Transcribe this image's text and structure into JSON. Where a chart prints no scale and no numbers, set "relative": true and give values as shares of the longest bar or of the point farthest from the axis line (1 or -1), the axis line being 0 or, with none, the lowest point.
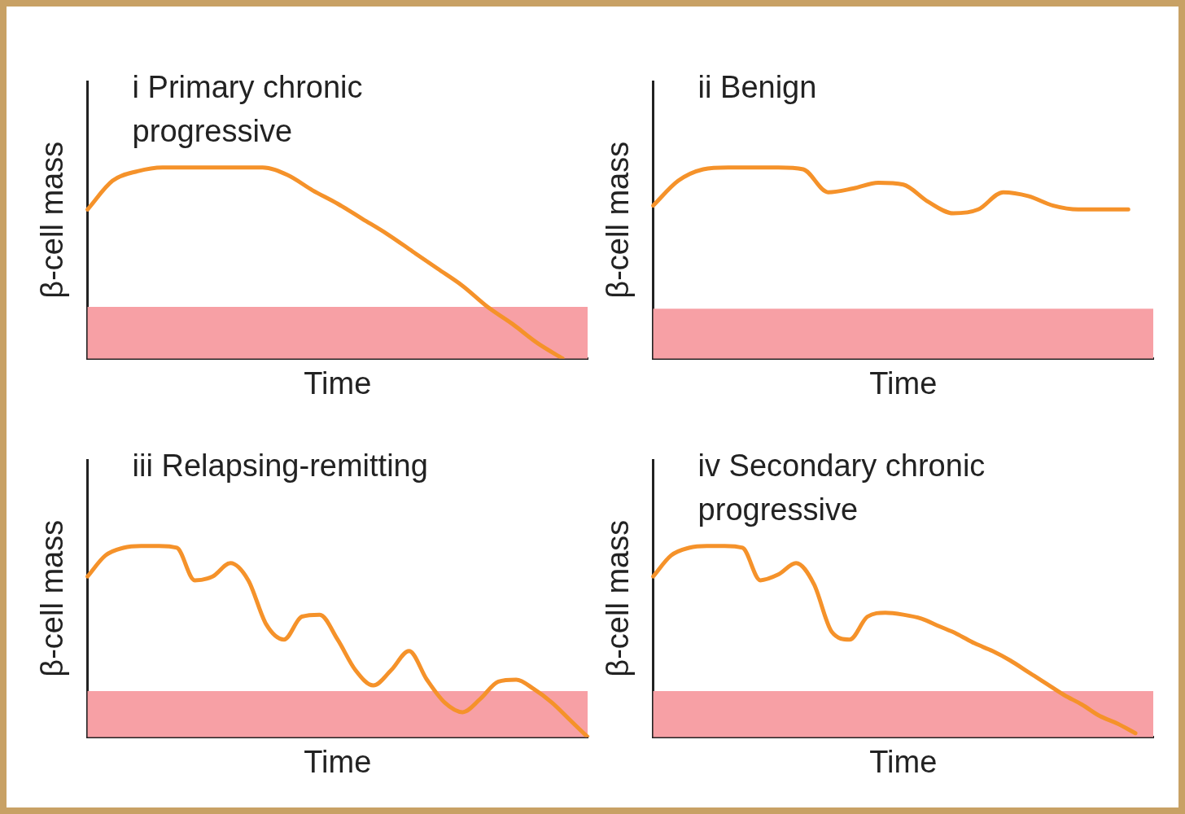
{
  "chart_data": [
    {
      "type": "line",
      "title": "i Primary chronic progressive",
      "xlabel": "Time",
      "ylabel": "β-cell mass",
      "relative": true,
      "tick_labels": false,
      "grid": false,
      "marker": "none",
      "color": "#f5922a",
      "categories": [
        null,
        null,
        null,
        null,
        null,
        null,
        null,
        null,
        null,
        null,
        null,
        null,
        null,
        null,
        null,
        null,
        null,
        null,
        null,
        null,
        null
      ],
      "values": [
        0.78,
        0.93,
        0.98,
        1,
        1,
        1,
        1,
        1,
        0.96,
        0.88,
        0.81,
        0.73,
        0.65,
        0.56,
        0.47,
        0.38,
        0.27,
        0.18,
        0.08,
        0,
        null
      ],
      "bands": [
        {
          "axis": "y",
          "from": 0,
          "to": 0.27,
          "color": "#f7a0a5"
        }
      ]
    },
    {
      "type": "line",
      "title": "ii Benign",
      "xlabel": "Time",
      "ylabel": "β-cell mass",
      "relative": true,
      "tick_labels": false,
      "grid": false,
      "marker": "none",
      "color": "#f5922a",
      "categories": [
        null,
        null,
        null,
        null,
        null,
        null,
        null,
        null,
        null,
        null,
        null,
        null,
        null,
        null,
        null,
        null,
        null,
        null,
        null,
        null,
        null
      ],
      "values": [
        0.8,
        0.93,
        0.99,
        1,
        1,
        1,
        0.99,
        0.87,
        0.89,
        0.92,
        0.91,
        0.82,
        0.76,
        0.78,
        0.87,
        0.85,
        0.8,
        0.78,
        0.78,
        0.78,
        null
      ],
      "bands": [
        {
          "axis": "y",
          "from": 0,
          "to": 0.26,
          "color": "#f7a0a5"
        }
      ]
    },
    {
      "type": "line",
      "title": "iii Relapsing-remitting",
      "xlabel": "Time",
      "ylabel": "β-cell mass",
      "relative": true,
      "tick_labels": false,
      "grid": false,
      "marker": "none",
      "color": "#f5922a",
      "categories": [
        null,
        null,
        null,
        null,
        null,
        null,
        null,
        null,
        null,
        null,
        null,
        null,
        null,
        null,
        null,
        null,
        null,
        null,
        null,
        null,
        null,
        null,
        null,
        null,
        null,
        null,
        null,
        null,
        null
      ],
      "values": [
        0.84,
        0.95,
        0.99,
        1,
        1,
        0.99,
        0.82,
        0.84,
        0.91,
        0.82,
        0.59,
        0.51,
        0.63,
        0.64,
        0.51,
        0.35,
        0.27,
        0.35,
        0.45,
        0.3,
        0.18,
        0.13,
        0.2,
        0.29,
        0.3,
        0.25,
        0.18,
        0.09,
        0
      ],
      "bands": [
        {
          "axis": "y",
          "from": 0,
          "to": 0.24,
          "color": "#f7a0a5"
        }
      ]
    },
    {
      "type": "line",
      "title": "iv Secondary chronic progressive",
      "xlabel": "Time",
      "ylabel": "β-cell mass",
      "relative": true,
      "tick_labels": false,
      "grid": false,
      "marker": "none",
      "color": "#f5922a",
      "categories": [
        null,
        null,
        null,
        null,
        null,
        null,
        null,
        null,
        null,
        null,
        null,
        null,
        null,
        null,
        null,
        null,
        null,
        null,
        null,
        null,
        null,
        null,
        null,
        null,
        null,
        null,
        null,
        null,
        null
      ],
      "values": [
        0.84,
        0.95,
        0.99,
        1,
        1,
        0.99,
        0.82,
        0.85,
        0.91,
        0.8,
        0.55,
        0.51,
        0.63,
        0.65,
        0.64,
        0.62,
        0.58,
        0.54,
        0.49,
        0.45,
        0.4,
        0.34,
        0.28,
        0.22,
        0.17,
        0.11,
        0.07,
        0.02,
        null
      ],
      "bands": [
        {
          "axis": "y",
          "from": 0,
          "to": 0.24,
          "color": "#f7a0a5"
        }
      ]
    }
  ]
}
